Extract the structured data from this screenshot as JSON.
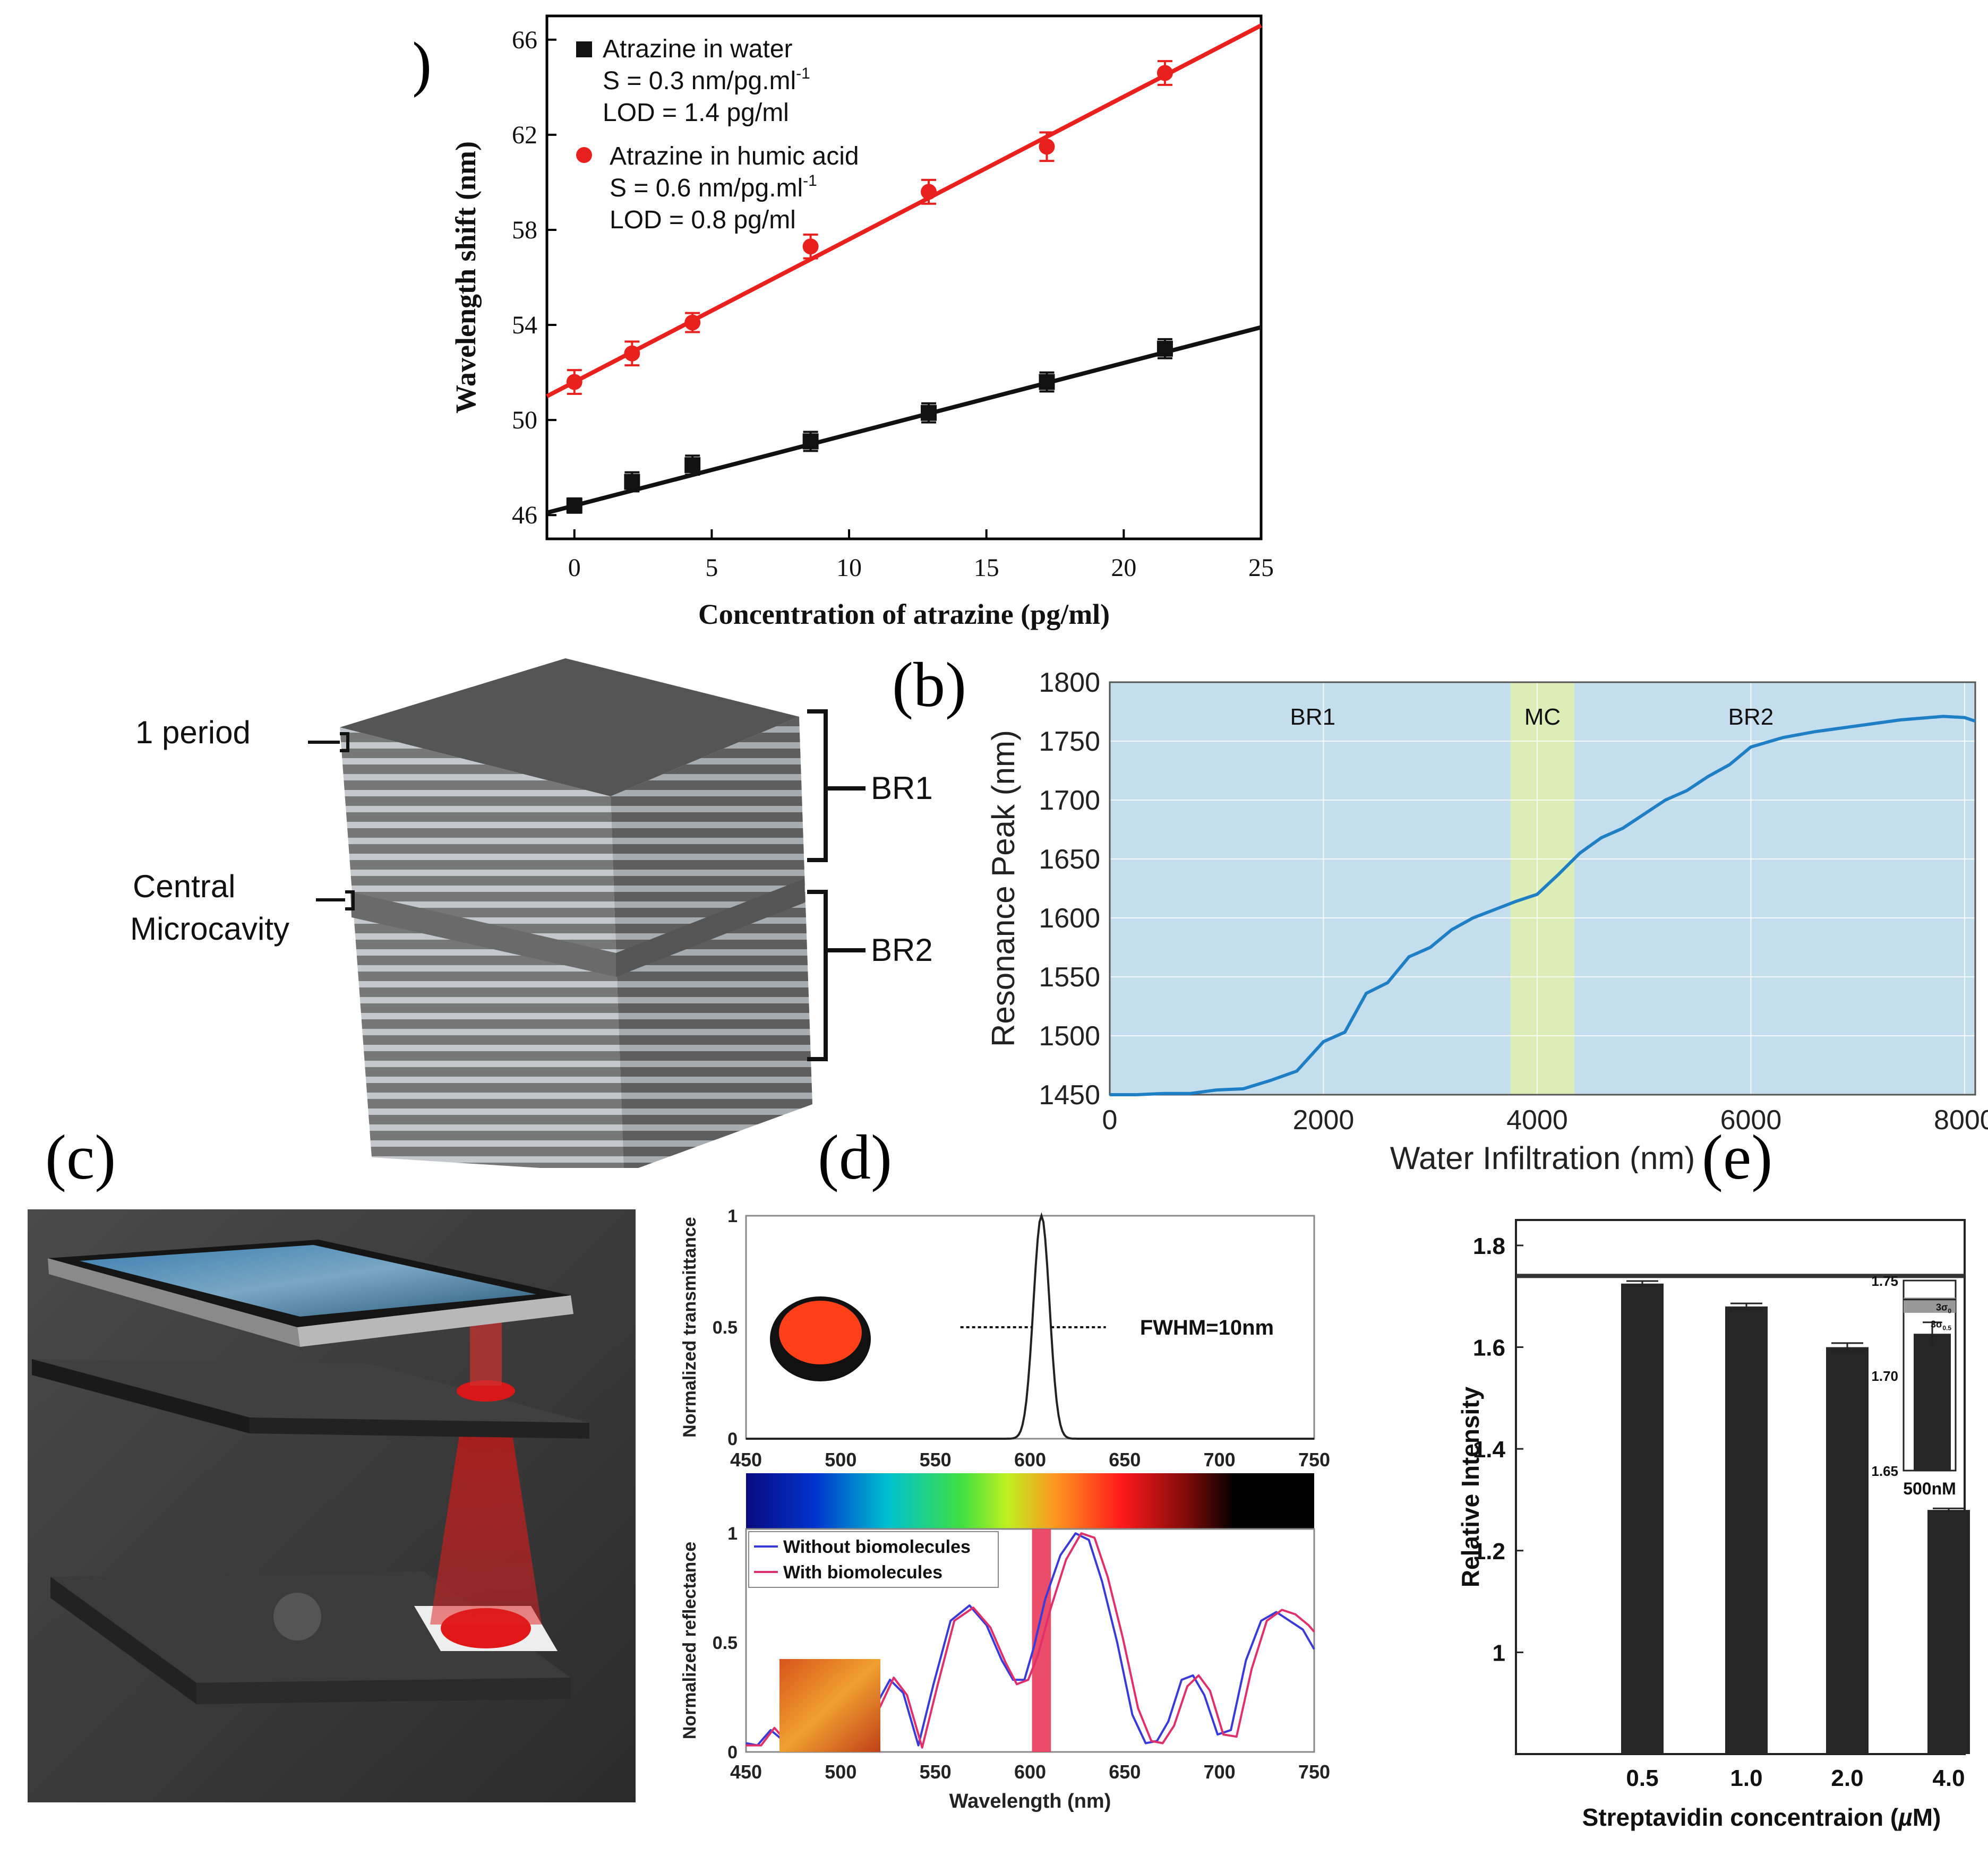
{
  "panel_labels": {
    "a": "(a)",
    "b": "(b)",
    "c": "(c)",
    "d": "(d)",
    "e": "(e)"
  },
  "colors": {
    "red": "#e8201e",
    "black": "#111111",
    "blue": "#1f7fc4",
    "bg_blue": "#c5deee",
    "bg_green": "#dcedb8",
    "bar": "#262626",
    "pink": "#e8385a"
  },
  "chart_data": [
    {
      "id": "a",
      "type": "scatter",
      "xlabel": "Concentration of atrazine (pg/ml)",
      "ylabel": "Wavelength shift (nm)",
      "xlim": [
        -1,
        25
      ],
      "ylim": [
        45,
        67
      ],
      "xticks": [
        "0",
        "5",
        "10",
        "15",
        "20",
        "25"
      ],
      "yticks": [
        "46",
        "50",
        "54",
        "58",
        "62",
        "66"
      ],
      "series": [
        {
          "name": "Atrazine in water",
          "line1": "S = 0.3 nm/pg.ml",
          "line1_sup": "-1",
          "line2": "LOD = 1.4 pg/ml",
          "x": [
            0,
            2.1,
            4.3,
            8.6,
            12.9,
            17.2,
            21.5
          ],
          "y": [
            46.4,
            47.4,
            48.1,
            49.1,
            50.3,
            51.6,
            53.0
          ],
          "err": [
            0.3,
            0.4,
            0.4,
            0.4,
            0.4,
            0.4,
            0.4
          ],
          "fit": [
            [
              -1,
              46.1
            ],
            [
              25,
              53.9
            ]
          ]
        },
        {
          "name": "Atrazine in humic acid",
          "line1": "S = 0.6 nm/pg.ml",
          "line1_sup": "-1",
          "line2": "LOD = 0.8 pg/ml",
          "x": [
            0,
            2.1,
            4.3,
            8.6,
            12.9,
            17.2,
            21.5
          ],
          "y": [
            51.6,
            52.8,
            54.1,
            57.3,
            59.6,
            61.5,
            64.6
          ],
          "err": [
            0.5,
            0.5,
            0.4,
            0.5,
            0.5,
            0.6,
            0.5
          ],
          "fit": [
            [
              -1,
              51.0
            ],
            [
              25,
              66.6
            ]
          ]
        }
      ]
    },
    {
      "id": "b",
      "type": "line",
      "xlabel": "Water Infiltration (nm)",
      "ylabel": "Resonance Peak (nm)",
      "xlim": [
        0,
        8100
      ],
      "ylim": [
        1450,
        1800
      ],
      "xticks": [
        "0",
        "2000",
        "4000",
        "6000",
        "8000"
      ],
      "yticks": [
        "1450",
        "1500",
        "1550",
        "1600",
        "1650",
        "1700",
        "1750",
        "1800"
      ],
      "regions": [
        {
          "label": "BR1",
          "from": 0,
          "to": 3750
        },
        {
          "label": "MC",
          "from": 3750,
          "to": 4350
        },
        {
          "label": "BR2",
          "from": 4350,
          "to": 8100
        }
      ],
      "x": [
        0,
        250,
        500,
        750,
        1000,
        1250,
        1500,
        1750,
        2000,
        2200,
        2400,
        2600,
        2800,
        3000,
        3200,
        3400,
        3600,
        3800,
        4000,
        4200,
        4400,
        4600,
        4800,
        5000,
        5200,
        5400,
        5600,
        5800,
        6000,
        6300,
        6600,
        7000,
        7400,
        7800,
        8000,
        8100
      ],
      "y": [
        1450,
        1450,
        1451,
        1451,
        1454,
        1455,
        1462,
        1470,
        1495,
        1503,
        1536,
        1545,
        1567,
        1575,
        1590,
        1600,
        1607,
        1614,
        1620,
        1637,
        1655,
        1668,
        1676,
        1688,
        1700,
        1708,
        1720,
        1730,
        1745,
        1753,
        1758,
        1763,
        1768,
        1771,
        1770,
        1767
      ]
    },
    {
      "id": "d-top",
      "type": "line",
      "ylabel": "Normalized transmittance",
      "xlim": [
        450,
        750
      ],
      "ylim": [
        0,
        1
      ],
      "xticks": [
        "450",
        "500",
        "550",
        "600",
        "650",
        "700",
        "750"
      ],
      "yticks": [
        "0",
        "0.5",
        "1"
      ],
      "annotation": "FWHM=10nm",
      "peak": 606,
      "fwhm": 10
    },
    {
      "id": "d-bottom",
      "type": "line",
      "xlabel": "Wavelength (nm)",
      "ylabel": "Normalized reflectance",
      "xlim": [
        450,
        750
      ],
      "ylim": [
        0,
        1
      ],
      "xticks": [
        "450",
        "500",
        "550",
        "600",
        "650",
        "700",
        "750"
      ],
      "yticks": [
        "0",
        "0.5",
        "1"
      ],
      "band": [
        601,
        611
      ],
      "series": [
        {
          "name": "Without biomolecules",
          "x": [
            450,
            456,
            463,
            470,
            478,
            484,
            491,
            497,
            504,
            511,
            519,
            526,
            533,
            541,
            549,
            558,
            568,
            577,
            585,
            591,
            597,
            602,
            608,
            616,
            624,
            631,
            638,
            646,
            654,
            661,
            667,
            673,
            680,
            686,
            692,
            699,
            706,
            714,
            722,
            730,
            737,
            744,
            750
          ],
          "y": [
            0.04,
            0.03,
            0.1,
            0.05,
            0.16,
            0.19,
            0.07,
            0.16,
            0.17,
            0.09,
            0.22,
            0.33,
            0.27,
            0.03,
            0.31,
            0.6,
            0.67,
            0.58,
            0.42,
            0.33,
            0.33,
            0.48,
            0.7,
            0.9,
            1.0,
            0.97,
            0.78,
            0.5,
            0.17,
            0.04,
            0.05,
            0.14,
            0.33,
            0.35,
            0.26,
            0.08,
            0.1,
            0.42,
            0.6,
            0.64,
            0.6,
            0.56,
            0.47
          ]
        },
        {
          "name": "With biomolecules",
          "x": [
            450,
            458,
            465,
            472,
            480,
            486,
            493,
            499,
            506,
            513,
            521,
            528,
            535,
            543,
            551,
            560,
            570,
            579,
            587,
            593,
            599,
            604,
            611,
            619,
            627,
            634,
            641,
            649,
            657,
            664,
            670,
            676,
            683,
            689,
            695,
            702,
            709,
            717,
            725,
            733,
            740,
            747,
            750
          ],
          "y": [
            0.03,
            0.03,
            0.11,
            0.04,
            0.14,
            0.2,
            0.06,
            0.15,
            0.18,
            0.08,
            0.21,
            0.34,
            0.26,
            0.02,
            0.3,
            0.6,
            0.66,
            0.57,
            0.41,
            0.31,
            0.33,
            0.44,
            0.66,
            0.88,
            1.0,
            0.98,
            0.8,
            0.52,
            0.2,
            0.05,
            0.04,
            0.12,
            0.3,
            0.35,
            0.28,
            0.08,
            0.07,
            0.38,
            0.6,
            0.65,
            0.63,
            0.58,
            0.55
          ]
        }
      ]
    },
    {
      "id": "e",
      "type": "bar",
      "xlabel": "Streptavidin concentraion (µM)",
      "xlabel_main": "Streptavidin concentraion (",
      "xlabel_mu": "µ",
      "xlabel_end": "M)",
      "ylabel": "Relative Intensity",
      "categories": [
        "0.5",
        "1.0",
        "2.0",
        "4.0"
      ],
      "values": [
        1.725,
        1.68,
        1.6,
        1.28
      ],
      "err": [
        0.005,
        0.006,
        0.008,
        0.003
      ],
      "baseline": 1.74,
      "ylim": [
        0.8,
        1.85
      ],
      "yticks": [
        "1",
        "1.2",
        "1.4",
        "1.6",
        "1.8"
      ],
      "inset": {
        "label": "500nM",
        "ylim": [
          1.65,
          1.75
        ],
        "yticks": [
          "1.65",
          "1.70",
          "1.75"
        ],
        "value": 1.722,
        "err": 0.006,
        "line_3s0": "3σ",
        "line_3s0_sub": "0",
        "line_3s05": "3σ",
        "line_3s05_sub": "0.5"
      }
    }
  ],
  "schematic_b": {
    "label_period": "1 period",
    "label_cavity_1": "Central",
    "label_cavity_2": "Microcavity",
    "label_br1": "BR1",
    "label_br2": "BR2"
  }
}
